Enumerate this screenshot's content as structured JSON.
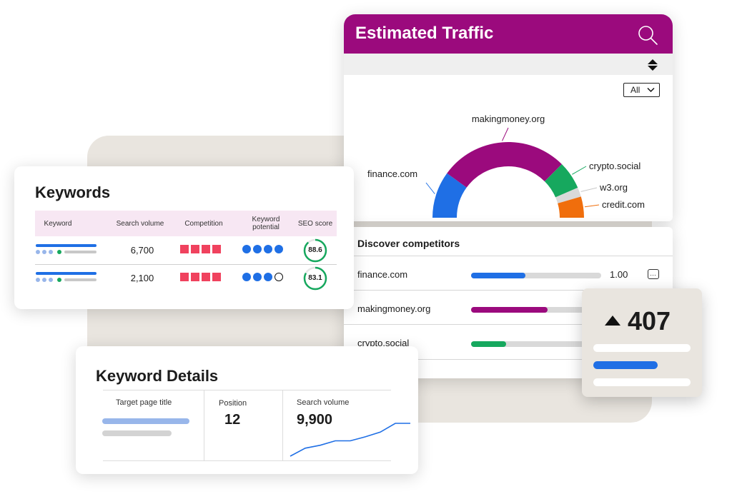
{
  "traffic": {
    "title": "Estimated Traffic",
    "filter_value": "All",
    "segments": [
      {
        "label": "finance.com",
        "share": 20,
        "color": "#1f6fe5"
      },
      {
        "label": "makingmoney.org",
        "share": 55,
        "color": "#9b0a7d"
      },
      {
        "label": "crypto.social",
        "share": 12,
        "color": "#16a85e"
      },
      {
        "label": "w3.org",
        "share": 4,
        "color": "#d9d9d9"
      },
      {
        "label": "credit.com",
        "share": 9,
        "color": "#f06e0c"
      }
    ]
  },
  "competitors": {
    "title": "Discover competitors",
    "rows": [
      {
        "name": "finance.com",
        "value": "1.00",
        "progress": 0.42,
        "color": "#1f6fe5"
      },
      {
        "name": "makingmoney.org",
        "value": "",
        "progress": 0.59,
        "color": "#9b0a7d"
      },
      {
        "name": "crypto.social",
        "value": "",
        "progress": 0.27,
        "color": "#16a85e"
      }
    ]
  },
  "score_card": {
    "value": "407",
    "colors": {
      "light": "#ffffff",
      "accent": "#1f6fe5"
    }
  },
  "keywords": {
    "title": "Keywords",
    "columns": {
      "keyword": "Keyword",
      "search_volume": "Search volume",
      "competition": "Competition",
      "potential_line1": "Keyword",
      "potential_line2": "potential",
      "seo_score": "SEO score"
    },
    "rows": [
      {
        "volume": "6,700",
        "competition_level": 4,
        "potential_filled": 4,
        "seo_score": "88.6",
        "seo_fraction": 0.886
      },
      {
        "volume": "2,100",
        "competition_level": 4,
        "potential_filled": 3,
        "seo_score": "83.1",
        "seo_fraction": 0.831
      }
    ],
    "colors": {
      "competition": "#f0425e",
      "potential": "#1f6fe5",
      "seo": "#16a85e"
    }
  },
  "keyword_details": {
    "title": "Keyword Details",
    "target_page_title_label": "Target page title",
    "position_label": "Position",
    "position_value": "12",
    "search_volume_label": "Search volume",
    "search_volume_value": "9,900",
    "trend": [
      0,
      22,
      30,
      42,
      42,
      53,
      66,
      90,
      90
    ]
  }
}
